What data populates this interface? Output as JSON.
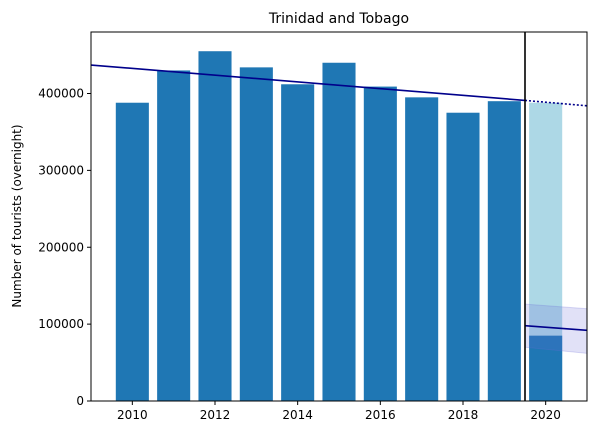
{
  "chart_data": {
    "type": "bar",
    "title": "Trinidad and Tobago",
    "xlabel": "",
    "ylabel": "Number of tourists (overnight)",
    "xlim": [
      2009,
      2021
    ],
    "ylim": [
      0,
      480000
    ],
    "x_ticks": [
      2010,
      2012,
      2014,
      2016,
      2018,
      2020
    ],
    "y_ticks": [
      0,
      100000,
      200000,
      300000,
      400000
    ],
    "grid": false,
    "colors": {
      "bars": "#1f77b4",
      "projected_bar": "#add8e6",
      "trend_line": "#00008b",
      "band": "#6a6ad6",
      "divider": "#000000"
    },
    "series": [
      {
        "x": [
          2010,
          2011,
          2012,
          2013,
          2014,
          2015,
          2016,
          2017,
          2018,
          2019
        ],
        "values": [
          388000,
          430000,
          455000,
          434000,
          412000,
          440000,
          409000,
          395000,
          375000,
          390000
        ]
      }
    ],
    "projected_bar": {
      "x": 2020,
      "value": 388000
    },
    "observed_2020": {
      "x": 2020,
      "value": 85000
    },
    "divider_x": 2019.5,
    "trend_line": {
      "x": [
        2009,
        2019.5
      ],
      "y": [
        437000,
        391000
      ]
    },
    "trend_projection": {
      "x": [
        2019.5,
        2021
      ],
      "y": [
        391000,
        384000
      ]
    },
    "post_line": {
      "x": [
        2019.5,
        2021
      ],
      "y": [
        98000,
        92000
      ]
    },
    "post_band": {
      "x": [
        2019.5,
        2021
      ],
      "upper": [
        126000,
        120000
      ],
      "lower": [
        70000,
        62000
      ]
    }
  }
}
